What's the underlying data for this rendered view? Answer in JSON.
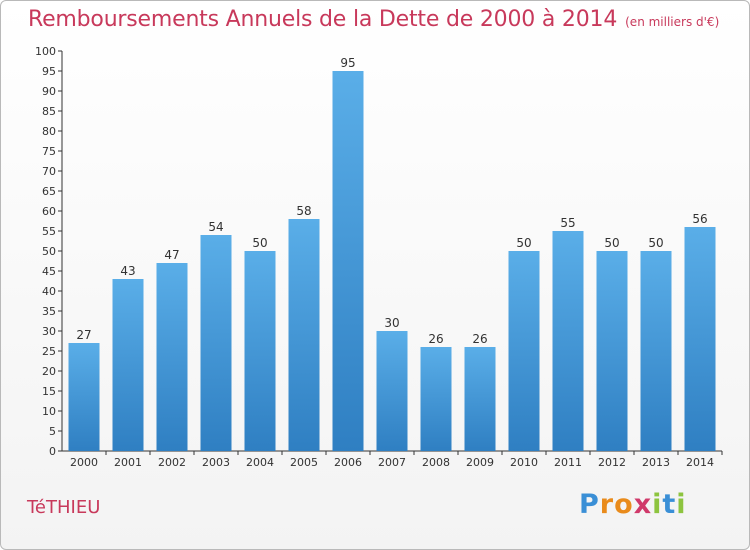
{
  "chart_data": {
    "type": "bar",
    "title": "Remboursements Annuels de la Dette de 2000 à 2014",
    "subtitle": "(en milliers d'€)",
    "categories": [
      "2000",
      "2001",
      "2002",
      "2003",
      "2004",
      "2005",
      "2006",
      "2007",
      "2008",
      "2009",
      "2010",
      "2011",
      "2012",
      "2013",
      "2014"
    ],
    "values": [
      27,
      43,
      47,
      54,
      50,
      58,
      95,
      30,
      26,
      26,
      50,
      55,
      50,
      50,
      56
    ],
    "ylim": [
      0,
      100
    ],
    "ytick_step": 5,
    "xlabel": "",
    "ylabel": "",
    "grid": false
  },
  "place_name": "TéTHIEU",
  "logo": {
    "text": "Proxiti",
    "letters": [
      "P",
      "r",
      "o",
      "x",
      "i",
      "t",
      "i"
    ],
    "colors": [
      "#3a8fd6",
      "#e98b1b",
      "#e98b1b",
      "#d0396a",
      "#8dc43f",
      "#3a8fd6",
      "#8dc43f"
    ]
  },
  "colors": {
    "accent": "#c8395b",
    "bar_top": "#5aaee8",
    "bar_bottom": "#2f7fc2",
    "axis": "#333333"
  }
}
